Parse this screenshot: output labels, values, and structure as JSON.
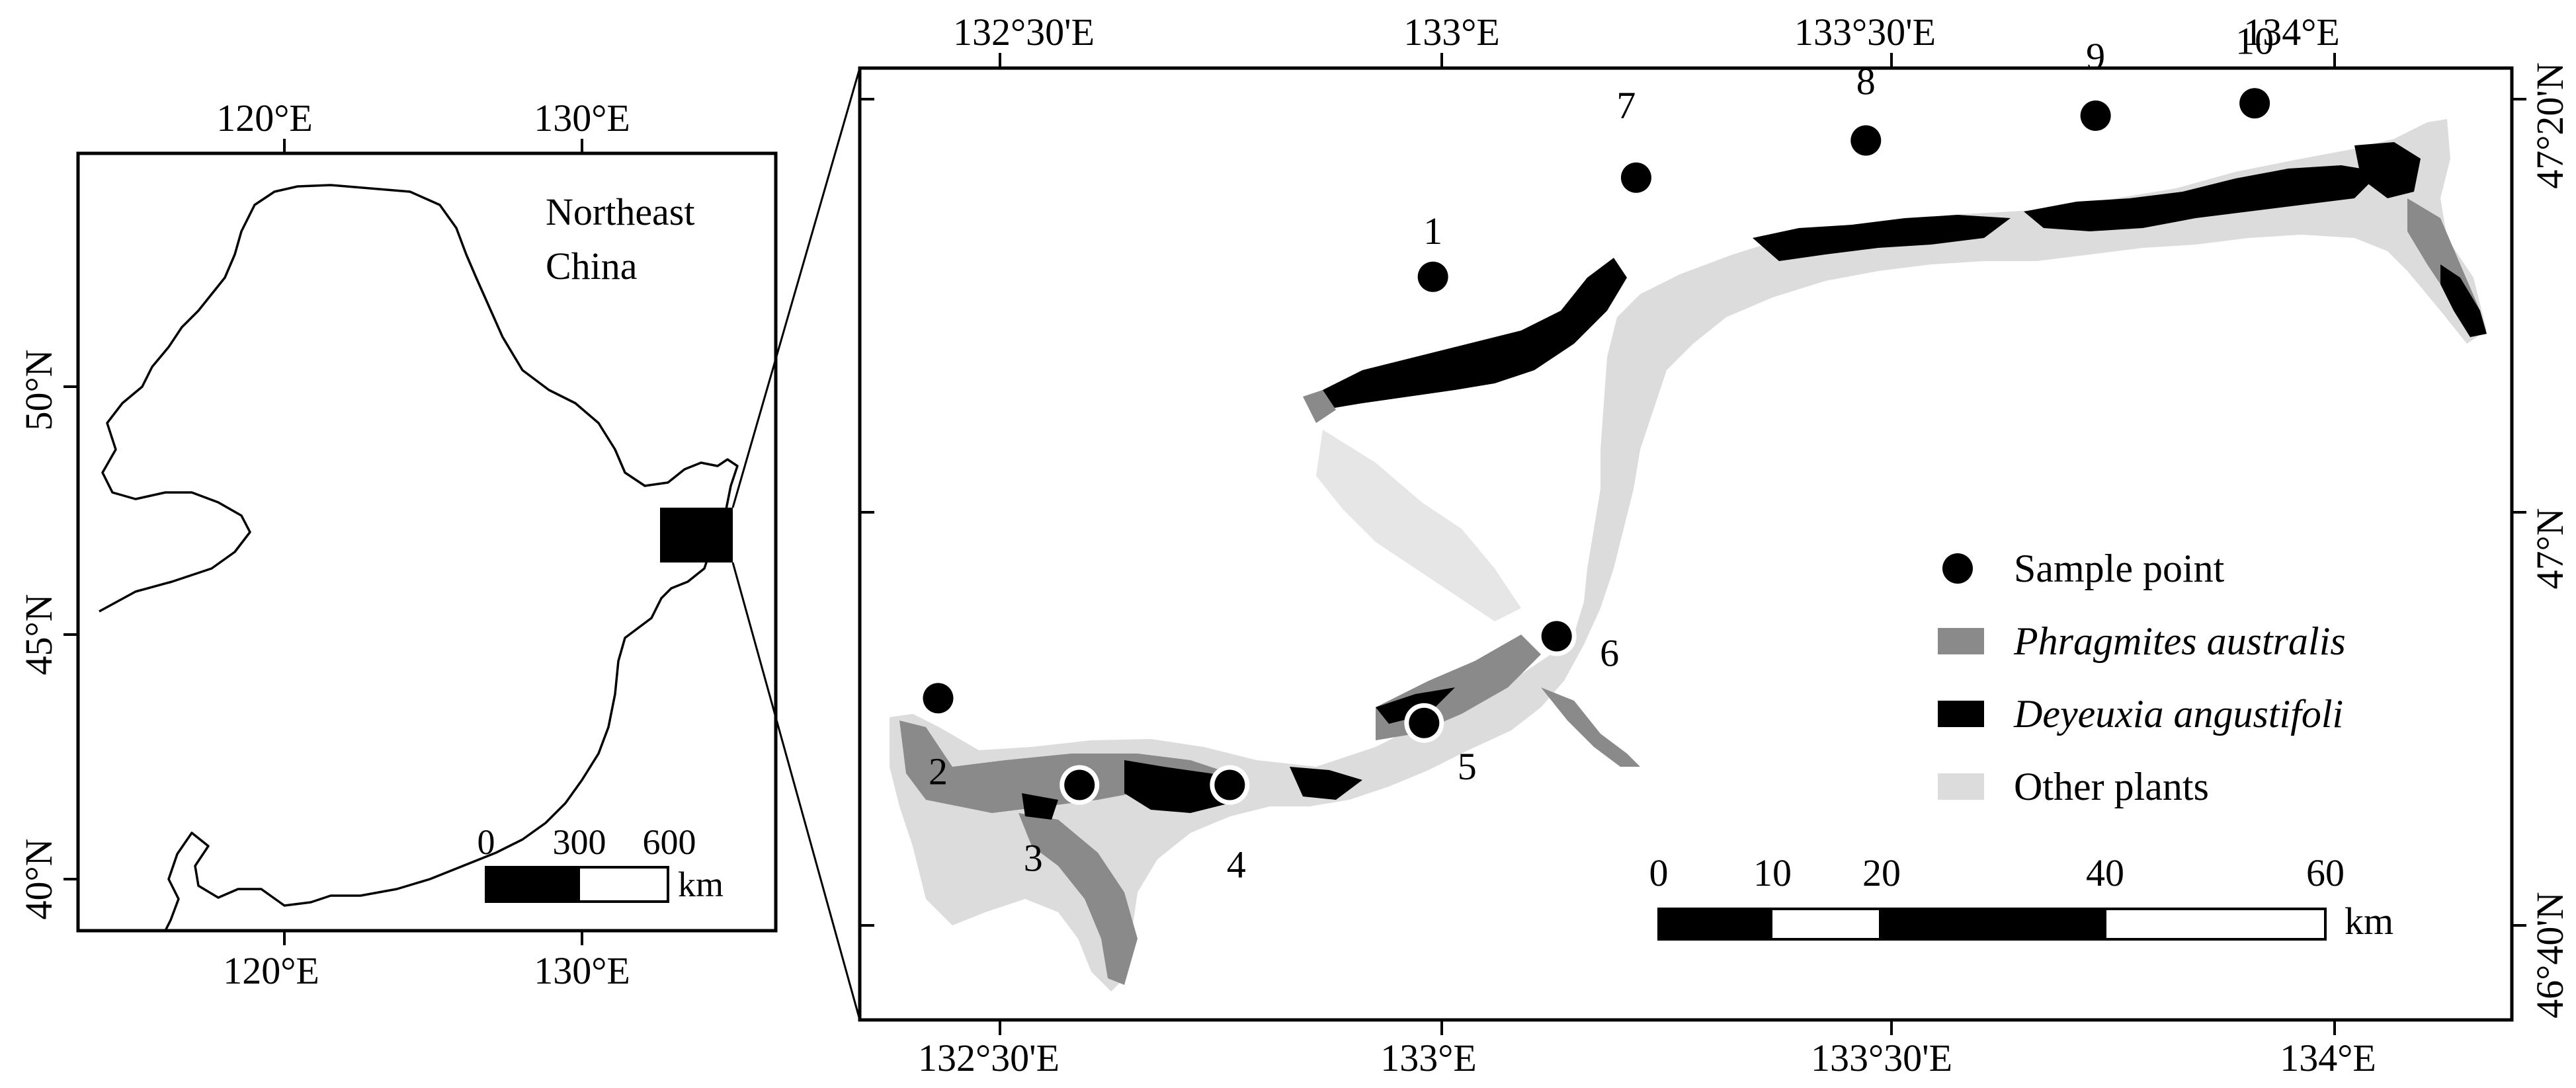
{
  "overview_map": {
    "region_label_line1": "Northeast",
    "region_label_line2": "China",
    "lon_ticks": [
      "120°E",
      "130°E"
    ],
    "lat_ticks": [
      "50°N",
      "45°N",
      "40°N"
    ],
    "scale_values": [
      "0",
      "300",
      "600"
    ],
    "scale_unit": "km"
  },
  "detail_map": {
    "lon_ticks": [
      "132°30'E",
      "133°E",
      "133°30'E",
      "134°E"
    ],
    "lat_ticks": [
      "47°20'N",
      "47°N",
      "46°40'N"
    ],
    "sample_points": [
      {
        "id": "1",
        "lon": 132.99,
        "lat": 47.19
      },
      {
        "id": "2",
        "lon": 132.43,
        "lat": 46.85
      },
      {
        "id": "3",
        "lon": 132.59,
        "lat": 46.78
      },
      {
        "id": "4",
        "lon": 132.76,
        "lat": 46.78
      },
      {
        "id": "5",
        "lon": 132.98,
        "lat": 46.83
      },
      {
        "id": "6",
        "lon": 133.13,
        "lat": 46.9
      },
      {
        "id": "7",
        "lon": 133.22,
        "lat": 47.27
      },
      {
        "id": "8",
        "lon": 133.48,
        "lat": 47.3
      },
      {
        "id": "9",
        "lon": 133.74,
        "lat": 47.32
      },
      {
        "id": "10",
        "lon": 133.92,
        "lat": 47.33
      }
    ],
    "legend": [
      {
        "label": "Sample point",
        "kind": "point",
        "color": "#000000"
      },
      {
        "label": "Phragmites australis",
        "kind": "patch",
        "color": "#8a8a8a",
        "italic": true
      },
      {
        "label": "Deyeuxia angustifoli",
        "kind": "patch",
        "color": "#000000",
        "italic": true
      },
      {
        "label": "Other plants",
        "kind": "patch",
        "color": "#dcdcdc"
      }
    ],
    "scale_values": [
      "0",
      "10",
      "20",
      "40",
      "60"
    ],
    "scale_unit": "km"
  }
}
